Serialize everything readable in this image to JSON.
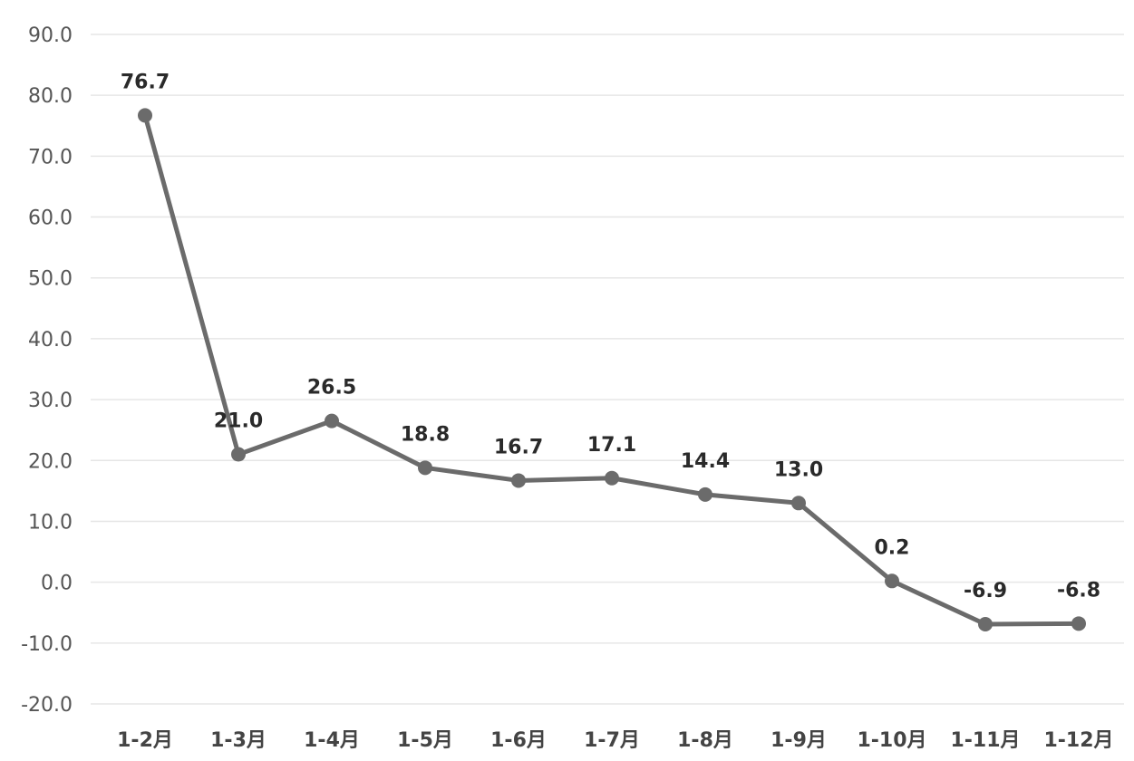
{
  "chart_data": {
    "type": "line",
    "title": "",
    "xlabel": "",
    "ylabel": "",
    "categories": [
      "1-2月",
      "1-3月",
      "1-4月",
      "1-5月",
      "1-6月",
      "1-7月",
      "1-8月",
      "1-9月",
      "1-10月",
      "1-11月",
      "1-12月"
    ],
    "series": [
      {
        "values": [
          76.7,
          21.0,
          26.5,
          18.8,
          16.7,
          17.1,
          14.4,
          13.0,
          0.2,
          -6.9,
          -6.8
        ],
        "labels": [
          "76.7",
          "21.0",
          "26.5",
          "18.8",
          "16.7",
          "17.1",
          "14.4",
          "13.0",
          "0.2",
          "-6.9",
          "-6.8"
        ]
      }
    ],
    "ylim": [
      -20,
      90
    ],
    "yticks": [
      "90.0",
      "80.0",
      "70.0",
      "60.0",
      "50.0",
      "40.0",
      "30.0",
      "20.0",
      "10.0",
      "0.0",
      "-10.0",
      "-20.0"
    ],
    "ytick_values": [
      90,
      80,
      70,
      60,
      50,
      40,
      30,
      20,
      10,
      0,
      -10,
      -20
    ],
    "grid": true,
    "legend": "none",
    "colors": {
      "line": "#6b6b6b",
      "grid": "#e6e6e6"
    }
  }
}
